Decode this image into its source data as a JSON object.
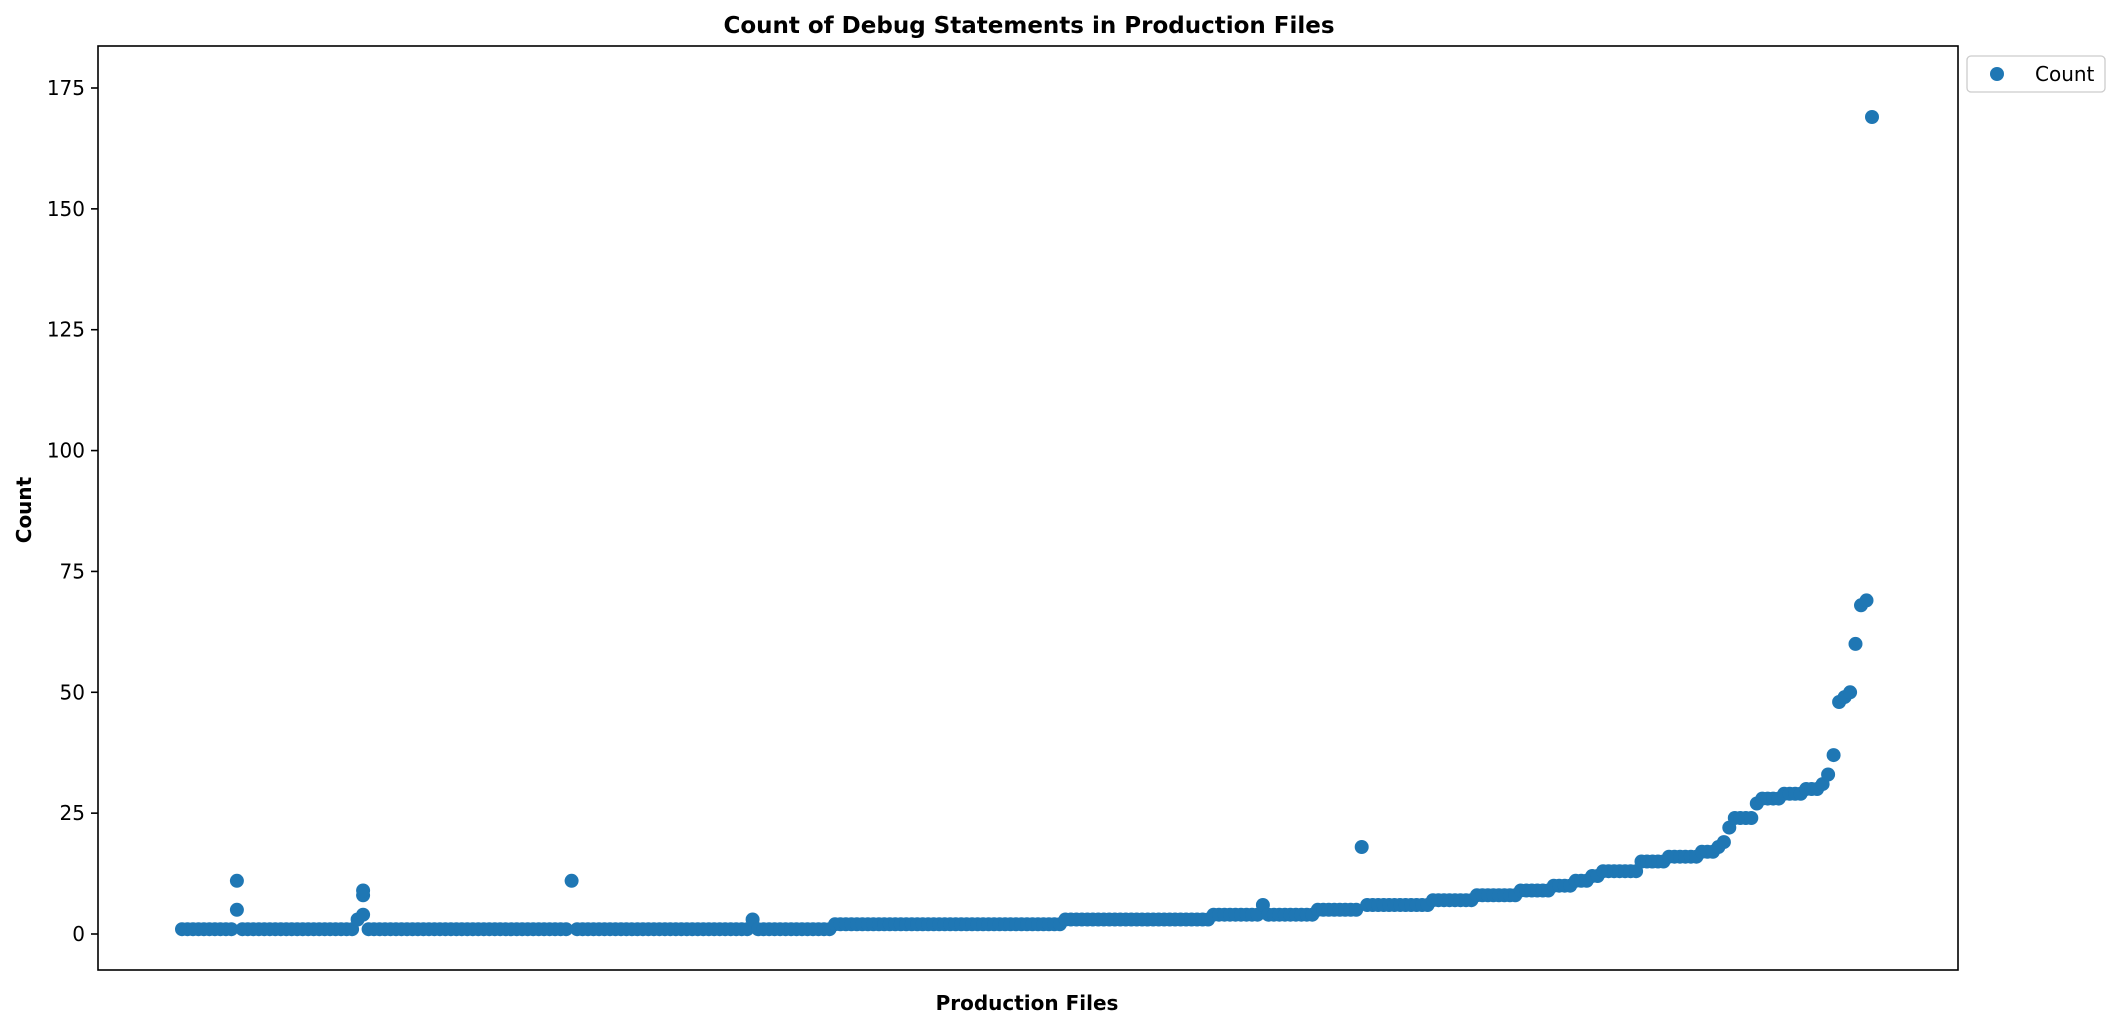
{
  "chart_data": {
    "type": "scatter",
    "title": "Count of Debug Statements in Production Files",
    "xlabel": "Production Files",
    "ylabel": "Count",
    "ylim": [
      -5,
      177
    ],
    "yticks": [
      0,
      25,
      50,
      75,
      100,
      125,
      150,
      175
    ],
    "xticks": [],
    "grid": false,
    "legend": {
      "position": "outside-top-right",
      "entries": [
        "Count"
      ]
    },
    "series": [
      {
        "name": "Count",
        "color": "#1f77b4",
        "runs": [
          [
            0,
            9,
            1
          ],
          [
            10,
            5
          ],
          [
            10,
            11
          ],
          [
            11,
            31,
            1
          ],
          [
            32,
            3
          ],
          [
            33,
            4
          ],
          [
            33,
            8
          ],
          [
            33,
            9
          ],
          [
            34,
            70,
            1
          ],
          [
            71,
            11
          ],
          [
            72,
            103,
            1
          ],
          [
            104,
            3
          ],
          [
            105,
            118,
            1
          ],
          [
            119,
            160,
            2
          ],
          [
            161,
            187,
            3
          ],
          [
            188,
            196,
            4
          ],
          [
            197,
            6
          ],
          [
            198,
            206,
            4
          ],
          [
            207,
            214,
            5
          ],
          [
            215,
            18
          ],
          [
            216,
            227,
            6
          ],
          [
            228,
            235,
            7
          ],
          [
            236,
            243,
            8
          ],
          [
            244,
            249,
            9
          ],
          [
            250,
            253,
            10
          ],
          [
            254,
            256,
            11
          ],
          [
            257,
            258,
            12
          ],
          [
            259,
            265,
            13
          ],
          [
            266,
            270,
            15
          ],
          [
            271,
            276,
            16
          ],
          [
            277,
            279,
            17
          ],
          [
            280,
            18
          ],
          [
            281,
            19
          ],
          [
            282,
            22
          ],
          [
            283,
            286,
            24
          ],
          [
            287,
            27
          ],
          [
            288,
            291,
            28
          ],
          [
            292,
            295,
            29
          ],
          [
            296,
            298,
            30
          ],
          [
            299,
            31
          ],
          [
            300,
            33
          ],
          [
            301,
            37
          ],
          [
            302,
            48
          ],
          [
            303,
            49
          ],
          [
            304,
            50
          ],
          [
            305,
            60
          ],
          [
            306,
            68
          ],
          [
            307,
            69
          ],
          [
            308,
            169
          ]
        ]
      }
    ]
  }
}
